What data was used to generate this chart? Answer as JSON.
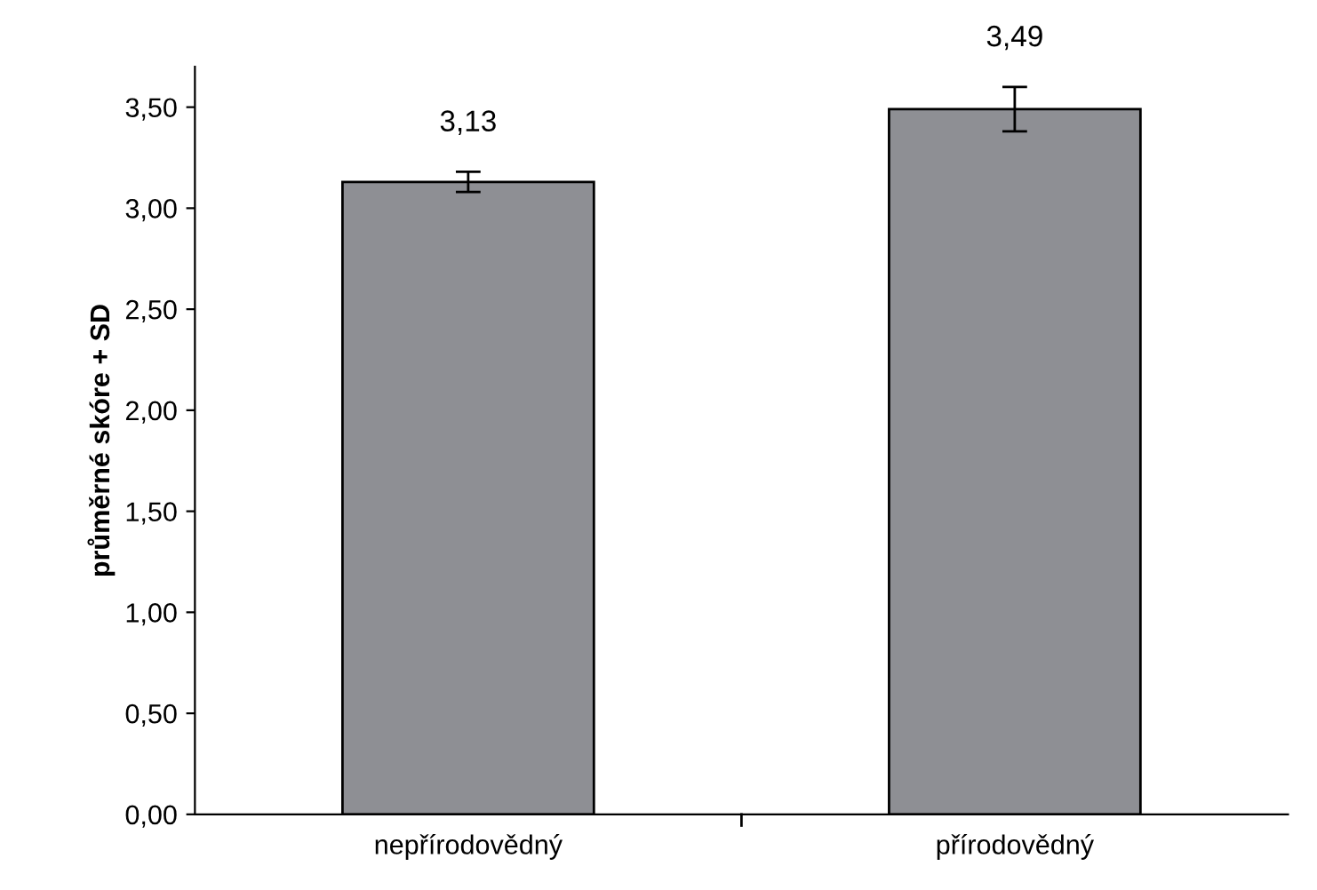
{
  "chart_data": {
    "type": "bar",
    "ylabel": "průměrné skóre + SD",
    "categories": [
      "nepřírodovědný",
      "přírodovědný"
    ],
    "values": [
      3.13,
      3.49
    ],
    "color": "#8e8f94",
    "errors": [
      0.05,
      0.11
    ],
    "value_labels": [
      "3,13",
      "3,49"
    ],
    "ylim": [
      0,
      3.7
    ],
    "yticks": [
      {
        "value": 0,
        "label": "0,00"
      },
      {
        "value": 0.5,
        "label": "0,50"
      },
      {
        "value": 1,
        "label": "1,00"
      },
      {
        "value": 1.5,
        "label": "1,50"
      },
      {
        "value": 2,
        "label": "2,00"
      },
      {
        "value": 2.5,
        "label": "2,50"
      },
      {
        "value": 3,
        "label": "3,00"
      },
      {
        "value": 3.5,
        "label": "3,50"
      }
    ],
    "grid": false,
    "legend": false
  }
}
